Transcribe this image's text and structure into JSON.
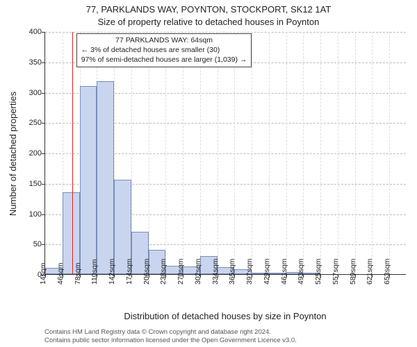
{
  "title_line1": "77, PARKLANDS WAY, POYNTON, STOCKPORT, SK12 1AT",
  "title_line2": "Size of property relative to detached houses in Poynton",
  "ylabel": "Number of detached properties",
  "xlabel": "Distribution of detached houses by size in Poynton",
  "chart": {
    "type": "histogram",
    "ylim": [
      0,
      400
    ],
    "ytick_step": 50,
    "yticks": [
      0,
      50,
      100,
      150,
      200,
      250,
      300,
      350,
      400
    ],
    "xticks": [
      "14sqm",
      "46sqm",
      "78sqm",
      "110sqm",
      "142sqm",
      "174sqm",
      "206sqm",
      "238sqm",
      "270sqm",
      "302sqm",
      "334sqm",
      "365sqm",
      "397sqm",
      "429sqm",
      "461sqm",
      "493sqm",
      "525sqm",
      "557sqm",
      "589sqm",
      "621sqm",
      "653sqm"
    ],
    "bin_start": 14,
    "bin_width": 32,
    "n_bins": 21,
    "values": [
      10,
      135,
      310,
      318,
      155,
      70,
      40,
      14,
      13,
      30,
      12,
      8,
      2,
      2,
      3,
      2,
      0,
      0,
      0,
      0,
      0
    ],
    "bar_fill": "#c9d5ef",
    "bar_stroke": "#7a8db8",
    "background_color": "#ffffff",
    "grid_color_h": "#bbbbbb",
    "grid_color_v": "#dddddd",
    "reference_line": {
      "x_value": 64,
      "color": "#dd2222"
    }
  },
  "annotation": {
    "line1": "77 PARKLANDS WAY: 64sqm",
    "line2": "← 3% of detached houses are smaller (30)",
    "line3": "97% of semi-detached houses are larger (1,039) →"
  },
  "footer_line1": "Contains HM Land Registry data © Crown copyright and database right 2024.",
  "footer_line2": "Contains public sector information licensed under the Open Government Licence v3.0."
}
